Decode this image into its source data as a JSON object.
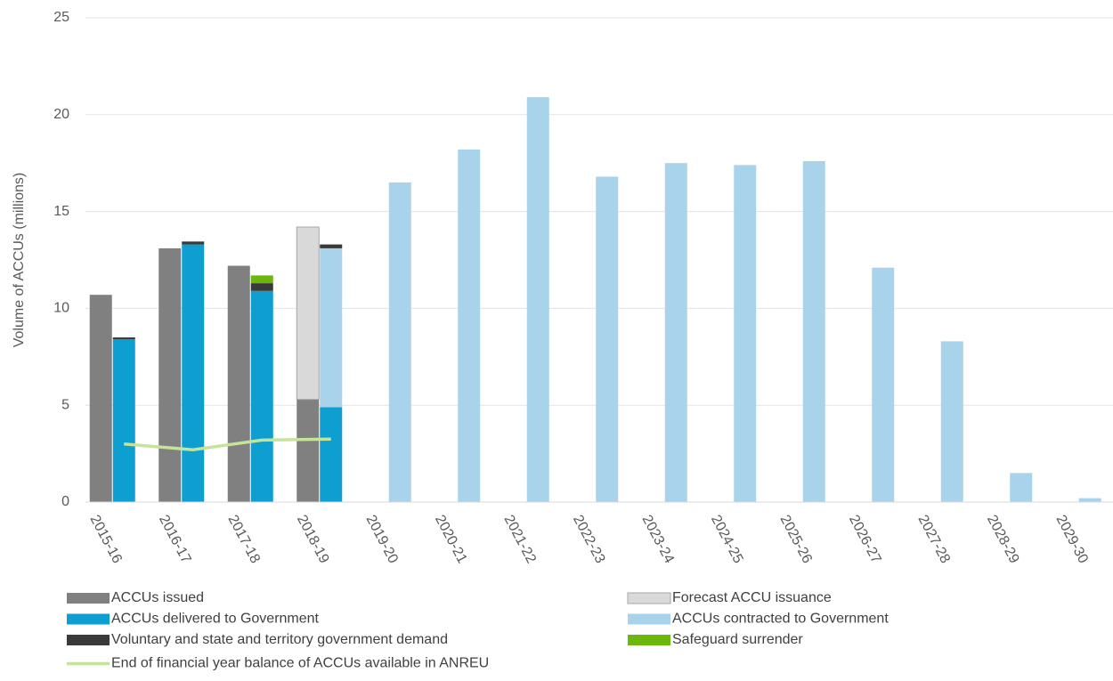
{
  "chart_data": {
    "type": "bar",
    "y_label": "Volume of ACCUs (millions)",
    "categories": [
      "2015-16",
      "2016-17",
      "2017-18",
      "2018-19",
      "2019-20",
      "2020-21",
      "2021-22",
      "2022-23",
      "2023-24",
      "2024-25",
      "2025-26",
      "2026-27",
      "2027-28",
      "2028-29",
      "2029-30"
    ],
    "series": [
      {
        "name": "ACCUs issued",
        "color": "#808080",
        "stack": "left",
        "values": [
          10.7,
          13.1,
          12.2,
          5.3,
          null,
          null,
          null,
          null,
          null,
          null,
          null,
          null,
          null,
          null,
          null
        ]
      },
      {
        "name": "Forecast ACCU issuance",
        "color": "#d9d9d9",
        "stack": "left",
        "values": [
          null,
          null,
          null,
          8.9,
          null,
          null,
          null,
          null,
          null,
          null,
          null,
          null,
          null,
          null,
          null
        ]
      },
      {
        "name": "ACCUs delivered to Government",
        "color": "#0e9fd0",
        "stack": "right",
        "values": [
          8.4,
          13.3,
          10.9,
          4.9,
          null,
          null,
          null,
          null,
          null,
          null,
          null,
          null,
          null,
          null,
          null
        ]
      },
      {
        "name": "ACCUs contracted to Government",
        "color": "#a9d3ea",
        "stack": "right",
        "values": [
          null,
          null,
          null,
          8.2,
          16.5,
          18.2,
          20.9,
          16.8,
          17.5,
          17.4,
          17.6,
          12.1,
          8.3,
          1.5,
          0.2
        ]
      },
      {
        "name": "Voluntary and state and territory government demand",
        "color": "#3a3a3a",
        "stack": "right",
        "values": [
          0.1,
          0.15,
          0.4,
          0.2,
          null,
          null,
          null,
          null,
          null,
          null,
          null,
          null,
          null,
          null,
          null
        ]
      },
      {
        "name": "Safeguard surrender",
        "color": "#6bb70a",
        "stack": "right",
        "values": [
          null,
          null,
          0.4,
          null,
          null,
          null,
          null,
          null,
          null,
          null,
          null,
          null,
          null,
          null,
          null
        ]
      },
      {
        "name": "End of financial year balance of ACCUs available in ANREU",
        "color": "#c5e39a",
        "type": "line",
        "values": [
          3.0,
          2.7,
          3.2,
          3.25,
          null,
          null,
          null,
          null,
          null,
          null,
          null,
          null,
          null,
          null,
          null
        ]
      }
    ],
    "ylim": [
      0,
      25
    ],
    "yticks": [
      0,
      5,
      10,
      15,
      20,
      25
    ],
    "grid": true
  }
}
